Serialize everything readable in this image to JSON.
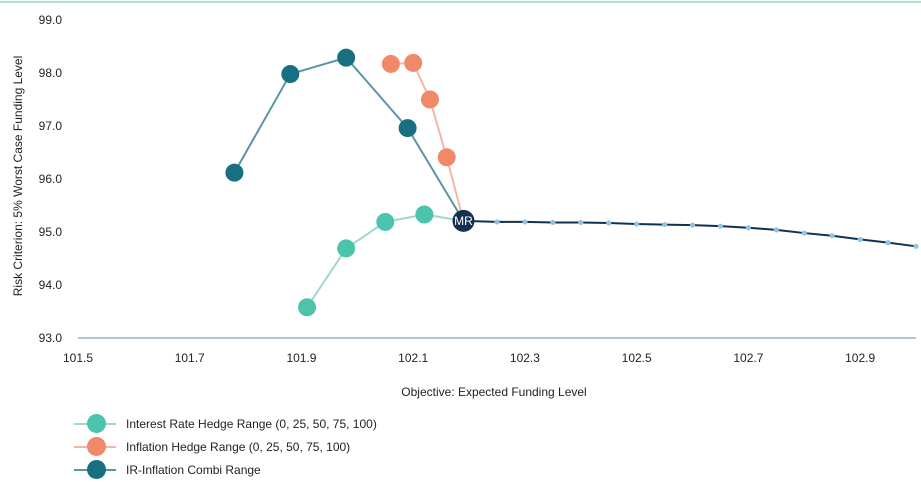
{
  "chart_data": {
    "type": "scatter",
    "xlabel": "Objective: Expected Funding Level",
    "ylabel": "Risk Criterion: 5% Worst Case Funding Level",
    "xlim": [
      101.5,
      103.0
    ],
    "ylim": [
      93.0,
      99.0
    ],
    "x_ticks": [
      "101.5",
      "101.7",
      "101.9",
      "102.1",
      "102.3",
      "102.5",
      "102.7",
      "102.9"
    ],
    "y_ticks": [
      "93.0",
      "94.0",
      "95.0",
      "96.0",
      "97.0",
      "98.0",
      "99.0"
    ],
    "grid": false,
    "legend_position": "bottom-left",
    "series": [
      {
        "name": "Interest Rate Hedge Range (0, 25, 50, 75, 100)",
        "color": "#4cc4ab",
        "line_color": "#9ed9cb",
        "points": [
          [
            101.91,
            93.58
          ],
          [
            101.98,
            94.69
          ],
          [
            102.05,
            95.19
          ],
          [
            102.12,
            95.33
          ],
          [
            102.19,
            95.21
          ]
        ]
      },
      {
        "name": "Inflation Hedge Range (0, 25, 50, 75, 100)",
        "color": "#f0896a",
        "line_color": "#f4b8a2",
        "points": [
          [
            102.06,
            98.17
          ],
          [
            102.1,
            98.19
          ],
          [
            102.13,
            97.5
          ],
          [
            102.16,
            96.41
          ],
          [
            102.19,
            95.21
          ]
        ]
      },
      {
        "name": "IR-Inflation Combi Range",
        "color": "#176f81",
        "line_color": "#5a95a5",
        "points": [
          [
            101.78,
            96.12
          ],
          [
            101.88,
            97.98
          ],
          [
            101.98,
            98.29
          ],
          [
            102.09,
            96.96
          ],
          [
            102.19,
            95.21
          ]
        ]
      }
    ],
    "frontier": {
      "color": "#12304f",
      "dot_color": "#8ec3e6",
      "points": [
        [
          102.19,
          95.21
        ],
        [
          102.25,
          95.19
        ],
        [
          102.3,
          95.19
        ],
        [
          102.35,
          95.18
        ],
        [
          102.4,
          95.18
        ],
        [
          102.45,
          95.17
        ],
        [
          102.5,
          95.15
        ],
        [
          102.55,
          95.14
        ],
        [
          102.6,
          95.13
        ],
        [
          102.65,
          95.11
        ],
        [
          102.7,
          95.08
        ],
        [
          102.75,
          95.04
        ],
        [
          102.8,
          94.98
        ],
        [
          102.85,
          94.93
        ],
        [
          102.9,
          94.86
        ],
        [
          102.95,
          94.8
        ],
        [
          103.0,
          94.73
        ]
      ]
    },
    "annotations": [
      {
        "label": "MR",
        "x": 102.19,
        "y": 95.21,
        "color": "#12304f",
        "text_color": "#ffffff"
      }
    ]
  }
}
